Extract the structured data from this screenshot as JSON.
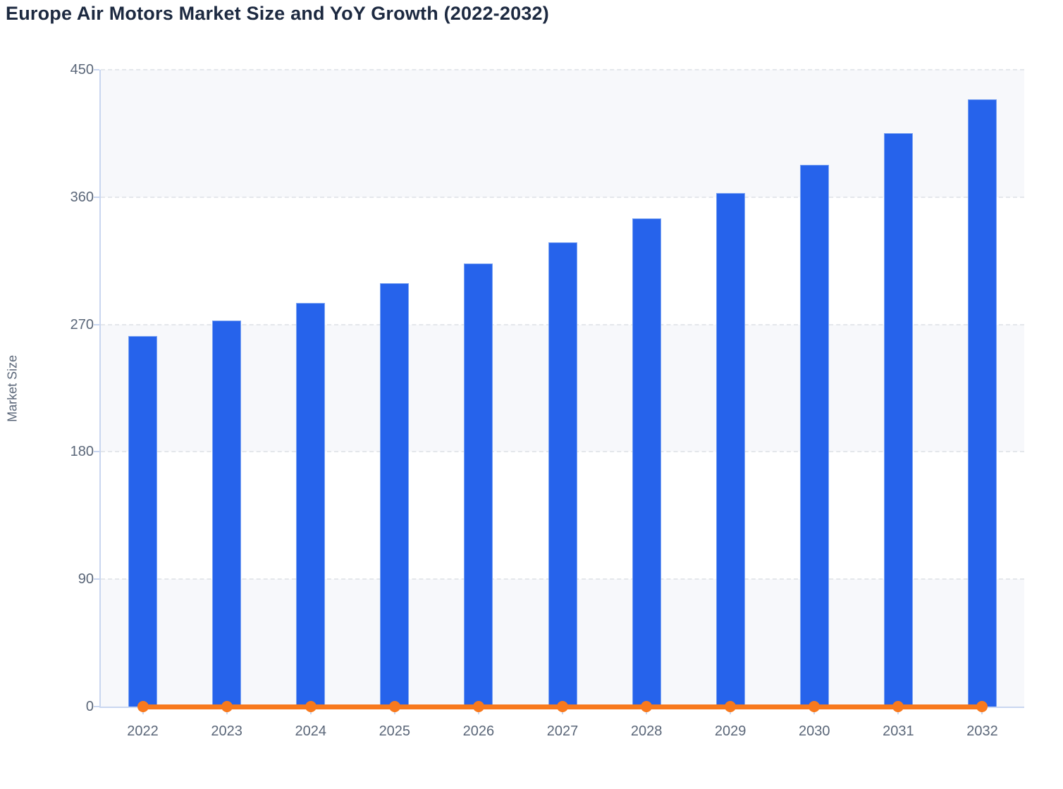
{
  "chart_title": "Europe Air Motors Market Size and YoY Growth (2022-2032)",
  "chart_data": {
    "type": "bar",
    "title": "Europe Air Motors Market Size and YoY Growth (2022-2032)",
    "categories": [
      "2022",
      "2023",
      "2024",
      "2025",
      "2026",
      "2027",
      "2028",
      "2029",
      "2030",
      "2031",
      "2032"
    ],
    "series": [
      {
        "name": "Market Size",
        "type": "bar",
        "color": "#2663EB",
        "values": [
          262,
          273,
          285,
          299,
          313,
          328,
          345,
          363,
          383,
          405,
          429
        ]
      },
      {
        "name": "YoY Growth",
        "type": "line",
        "color": "#F8791D",
        "values": [
          0,
          0,
          0,
          0,
          0,
          0,
          0,
          0,
          0,
          0,
          0
        ]
      }
    ],
    "xlabel": "",
    "ylabel": "Market Size",
    "ylim": [
      0,
      450
    ],
    "y_ticks": [
      0,
      90,
      180,
      270,
      360,
      450
    ],
    "grid": "horizontal-dashed",
    "legend_position": "none",
    "plot_bands_shaded_ranges": [
      [
        0,
        90
      ],
      [
        180,
        270
      ],
      [
        360,
        450
      ]
    ]
  },
  "colors": {
    "bar_blue": "#2663EB",
    "line_orange": "#F8791D",
    "title_text": "#1C2940",
    "axis_text": "#5A6678",
    "axis_line": "#C9D6F0",
    "gridline": "#E4E7EB",
    "band_fill": "#F7F8FB"
  }
}
